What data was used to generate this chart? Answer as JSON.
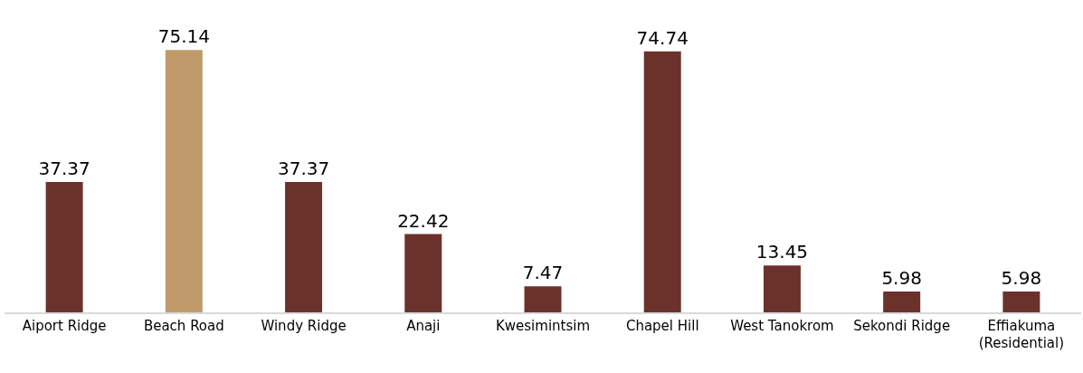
{
  "chart_data": {
    "type": "bar",
    "categories": [
      "Aiport Ridge",
      "Beach Road",
      "Windy Ridge",
      "Anaji",
      "Kwesimintsim",
      "Chapel Hill",
      "West Tanokrom",
      "Sekondi Ridge",
      "Effiakuma\n(Residential)"
    ],
    "values": [
      37.37,
      75.14,
      37.37,
      22.42,
      7.47,
      74.74,
      13.45,
      5.98,
      5.98
    ],
    "colors": [
      "#6b322c",
      "#bf9b6c",
      "#6b322c",
      "#6b322c",
      "#6b322c",
      "#6b322c",
      "#6b322c",
      "#6b322c",
      "#6b322c"
    ],
    "data_labels": true
  }
}
